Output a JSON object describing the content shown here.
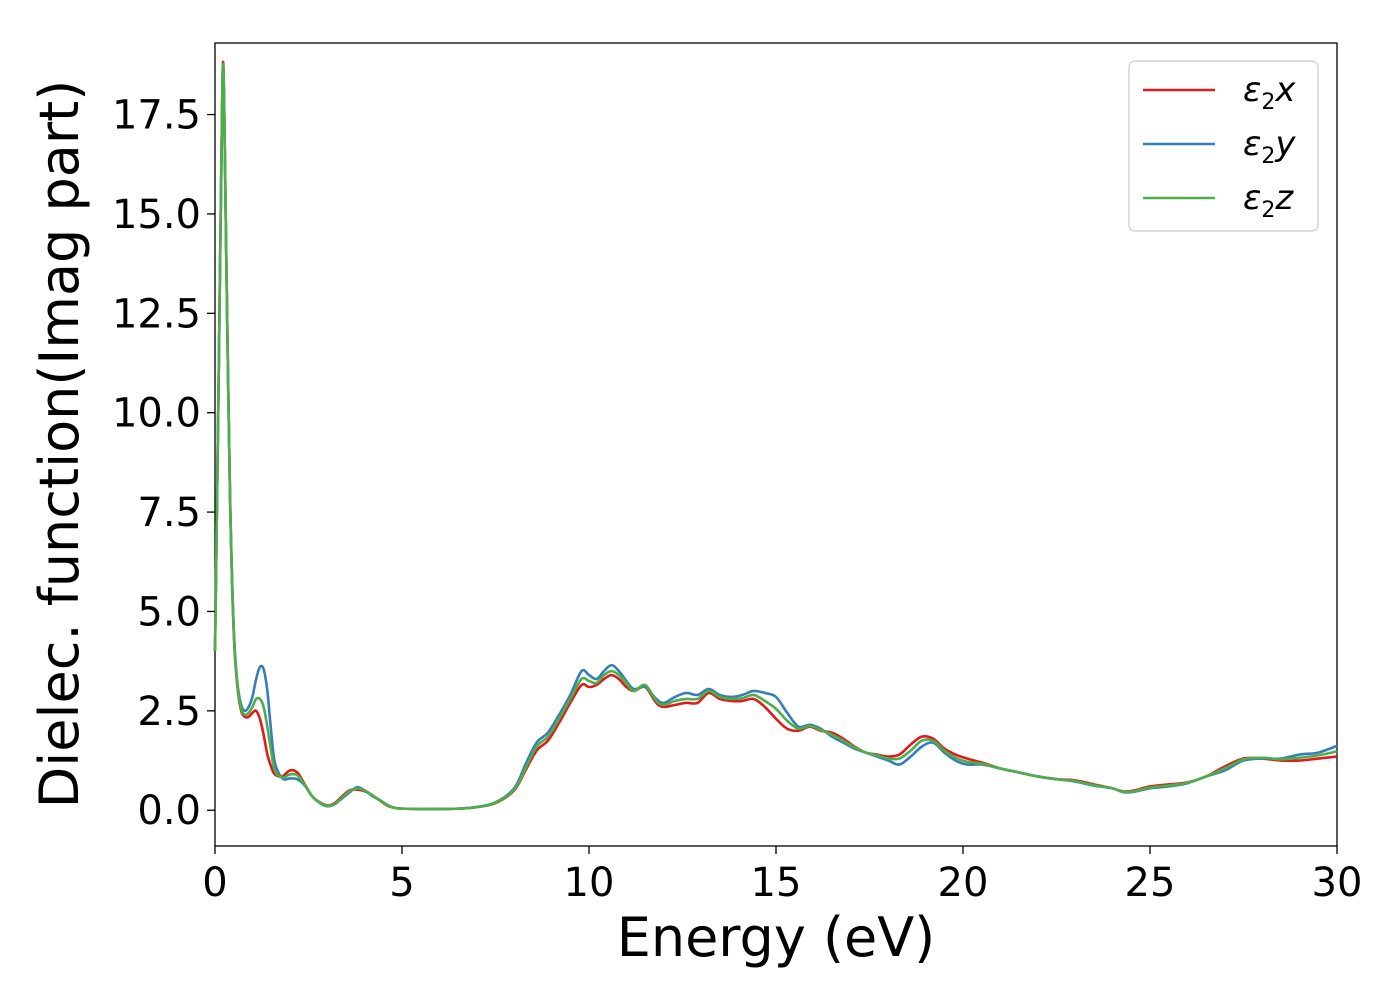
{
  "chart_data": {
    "type": "line",
    "xlabel": "Energy (eV)",
    "ylabel": "Dielec. function(Imag part)",
    "xlim": [
      0,
      30
    ],
    "ylim": [
      -0.9,
      19.3
    ],
    "xticks": [
      0,
      5,
      10,
      15,
      20,
      25,
      30
    ],
    "xtick_labels": [
      "0",
      "5",
      "10",
      "15",
      "20",
      "25",
      "30"
    ],
    "yticks": [
      0.0,
      2.5,
      5.0,
      7.5,
      10.0,
      12.5,
      15.0,
      17.5
    ],
    "ytick_labels": [
      "0.0",
      "2.5",
      "5.0",
      "7.5",
      "10.0",
      "12.5",
      "15.0",
      "17.5"
    ],
    "grid": false,
    "legend_position": "top-right",
    "series": [
      {
        "name": "ε₂x",
        "legend_main": "ε",
        "legend_sub": "2",
        "legend_tail": "x",
        "color": "#e31a1c",
        "x": [
          0,
          0.1,
          0.2,
          0.25,
          0.3,
          0.4,
          0.5,
          0.6,
          0.7,
          0.8,
          0.9,
          1.0,
          1.1,
          1.2,
          1.3,
          1.4,
          1.5,
          1.6,
          1.8,
          2.0,
          2.2,
          2.4,
          2.6,
          2.8,
          3.0,
          3.2,
          3.4,
          3.6,
          3.8,
          4.0,
          4.2,
          4.4,
          4.6,
          4.8,
          5.0,
          5.5,
          6.0,
          6.5,
          7.0,
          7.5,
          8.0,
          8.3,
          8.6,
          8.9,
          9.2,
          9.5,
          9.8,
          10.0,
          10.2,
          10.4,
          10.6,
          10.8,
          11.0,
          11.2,
          11.5,
          11.8,
          12.0,
          12.3,
          12.6,
          12.9,
          13.2,
          13.5,
          13.8,
          14.1,
          14.4,
          14.7,
          15.0,
          15.3,
          15.6,
          15.9,
          16.2,
          16.5,
          16.8,
          17.1,
          17.4,
          17.7,
          18.0,
          18.3,
          18.6,
          18.9,
          19.2,
          19.5,
          19.8,
          20.1,
          20.5,
          21.0,
          21.5,
          22.0,
          22.5,
          23.0,
          23.5,
          24.0,
          24.3,
          24.6,
          25.0,
          25.5,
          26.0,
          26.5,
          27.0,
          27.5,
          28.0,
          28.5,
          29.0,
          29.5,
          30.0
        ],
        "y": [
          4.0,
          11.0,
          18.4,
          17.5,
          14.0,
          8.0,
          4.5,
          3.1,
          2.5,
          2.35,
          2.35,
          2.45,
          2.5,
          2.3,
          1.9,
          1.4,
          1.1,
          0.9,
          0.85,
          1.0,
          0.95,
          0.65,
          0.35,
          0.2,
          0.12,
          0.18,
          0.35,
          0.5,
          0.52,
          0.48,
          0.38,
          0.25,
          0.12,
          0.06,
          0.04,
          0.03,
          0.03,
          0.04,
          0.08,
          0.18,
          0.5,
          1.0,
          1.5,
          1.75,
          2.2,
          2.7,
          3.15,
          3.1,
          3.15,
          3.3,
          3.4,
          3.3,
          3.1,
          3.0,
          3.1,
          2.7,
          2.6,
          2.65,
          2.7,
          2.7,
          2.95,
          2.8,
          2.75,
          2.75,
          2.8,
          2.6,
          2.3,
          2.05,
          2.0,
          2.1,
          2.0,
          1.95,
          1.8,
          1.6,
          1.45,
          1.4,
          1.35,
          1.4,
          1.65,
          1.85,
          1.8,
          1.55,
          1.4,
          1.3,
          1.2,
          1.05,
          0.95,
          0.85,
          0.78,
          0.75,
          0.65,
          0.55,
          0.47,
          0.5,
          0.6,
          0.65,
          0.7,
          0.85,
          1.1,
          1.3,
          1.3,
          1.25,
          1.25,
          1.3,
          1.35
        ]
      },
      {
        "name": "ε₂y",
        "legend_main": "ε",
        "legend_sub": "2",
        "legend_tail": "y",
        "color": "#377eb8",
        "x": [
          0,
          0.1,
          0.2,
          0.25,
          0.3,
          0.4,
          0.5,
          0.6,
          0.7,
          0.8,
          0.9,
          1.0,
          1.1,
          1.2,
          1.3,
          1.4,
          1.5,
          1.6,
          1.8,
          2.0,
          2.2,
          2.4,
          2.6,
          2.8,
          3.0,
          3.2,
          3.4,
          3.6,
          3.8,
          4.0,
          4.2,
          4.4,
          4.6,
          4.8,
          5.0,
          5.5,
          6.0,
          6.5,
          7.0,
          7.5,
          8.0,
          8.3,
          8.6,
          8.9,
          9.2,
          9.5,
          9.8,
          10.0,
          10.2,
          10.4,
          10.6,
          10.8,
          11.0,
          11.2,
          11.5,
          11.8,
          12.0,
          12.3,
          12.6,
          12.9,
          13.2,
          13.5,
          13.8,
          14.1,
          14.4,
          14.7,
          15.0,
          15.3,
          15.6,
          15.9,
          16.2,
          16.5,
          16.8,
          17.1,
          17.4,
          17.7,
          18.0,
          18.3,
          18.6,
          18.9,
          19.2,
          19.5,
          19.8,
          20.1,
          20.5,
          21.0,
          21.5,
          22.0,
          22.5,
          23.0,
          23.5,
          24.0,
          24.3,
          24.6,
          25.0,
          25.5,
          26.0,
          26.5,
          27.0,
          27.5,
          28.0,
          28.5,
          29.0,
          29.5,
          30.0
        ],
        "y": [
          4.0,
          11.0,
          18.3,
          17.4,
          14.0,
          8.0,
          4.6,
          3.2,
          2.65,
          2.5,
          2.6,
          2.85,
          3.3,
          3.6,
          3.55,
          3.0,
          2.0,
          1.2,
          0.8,
          0.8,
          0.78,
          0.62,
          0.35,
          0.18,
          0.1,
          0.15,
          0.3,
          0.45,
          0.58,
          0.5,
          0.36,
          0.26,
          0.14,
          0.06,
          0.04,
          0.03,
          0.03,
          0.04,
          0.08,
          0.2,
          0.55,
          1.15,
          1.7,
          1.95,
          2.4,
          2.9,
          3.5,
          3.4,
          3.3,
          3.5,
          3.65,
          3.5,
          3.25,
          3.05,
          3.1,
          2.8,
          2.7,
          2.85,
          2.95,
          2.9,
          3.05,
          2.9,
          2.85,
          2.9,
          3.0,
          2.95,
          2.85,
          2.45,
          2.1,
          2.15,
          2.05,
          1.85,
          1.7,
          1.55,
          1.45,
          1.35,
          1.25,
          1.15,
          1.35,
          1.6,
          1.7,
          1.45,
          1.25,
          1.15,
          1.15,
          1.05,
          0.95,
          0.85,
          0.78,
          0.72,
          0.62,
          0.55,
          0.45,
          0.47,
          0.55,
          0.6,
          0.68,
          0.85,
          1.0,
          1.25,
          1.3,
          1.3,
          1.4,
          1.45,
          1.62
        ]
      },
      {
        "name": "ε₂z",
        "legend_main": "ε",
        "legend_sub": "2",
        "legend_tail": "z",
        "color": "#4daf4a",
        "x": [
          0,
          0.1,
          0.2,
          0.25,
          0.3,
          0.4,
          0.5,
          0.6,
          0.7,
          0.8,
          0.9,
          1.0,
          1.1,
          1.2,
          1.3,
          1.4,
          1.5,
          1.6,
          1.8,
          2.0,
          2.2,
          2.4,
          2.6,
          2.8,
          3.0,
          3.2,
          3.4,
          3.6,
          3.8,
          4.0,
          4.2,
          4.4,
          4.6,
          4.8,
          5.0,
          5.5,
          6.0,
          6.5,
          7.0,
          7.5,
          8.0,
          8.3,
          8.6,
          8.9,
          9.2,
          9.5,
          9.8,
          10.0,
          10.2,
          10.4,
          10.6,
          10.8,
          11.0,
          11.2,
          11.5,
          11.8,
          12.0,
          12.3,
          12.6,
          12.9,
          13.2,
          13.5,
          13.8,
          14.1,
          14.4,
          14.7,
          15.0,
          15.3,
          15.6,
          15.9,
          16.2,
          16.5,
          16.8,
          17.1,
          17.4,
          17.7,
          18.0,
          18.3,
          18.6,
          18.9,
          19.2,
          19.5,
          19.8,
          20.1,
          20.5,
          21.0,
          21.5,
          22.0,
          22.5,
          23.0,
          23.5,
          24.0,
          24.3,
          24.6,
          25.0,
          25.5,
          26.0,
          26.5,
          27.0,
          27.5,
          28.0,
          28.5,
          29.0,
          29.5,
          30.0
        ],
        "y": [
          4.0,
          11.0,
          18.35,
          17.45,
          14.0,
          8.0,
          4.55,
          3.15,
          2.55,
          2.4,
          2.45,
          2.6,
          2.8,
          2.8,
          2.6,
          2.1,
          1.5,
          1.0,
          0.82,
          0.9,
          0.88,
          0.63,
          0.35,
          0.19,
          0.11,
          0.16,
          0.32,
          0.48,
          0.55,
          0.5,
          0.38,
          0.26,
          0.13,
          0.06,
          0.04,
          0.03,
          0.03,
          0.04,
          0.08,
          0.19,
          0.52,
          1.05,
          1.6,
          1.85,
          2.3,
          2.8,
          3.3,
          3.25,
          3.2,
          3.4,
          3.5,
          3.4,
          3.2,
          3.0,
          3.15,
          2.75,
          2.65,
          2.75,
          2.8,
          2.8,
          3.0,
          2.85,
          2.8,
          2.82,
          2.9,
          2.75,
          2.55,
          2.25,
          2.05,
          2.12,
          2.02,
          1.9,
          1.75,
          1.58,
          1.45,
          1.38,
          1.3,
          1.3,
          1.5,
          1.75,
          1.75,
          1.5,
          1.32,
          1.22,
          1.17,
          1.05,
          0.95,
          0.85,
          0.78,
          0.73,
          0.63,
          0.55,
          0.46,
          0.48,
          0.57,
          0.62,
          0.69,
          0.85,
          1.05,
          1.28,
          1.32,
          1.28,
          1.32,
          1.38,
          1.48
        ]
      }
    ]
  }
}
